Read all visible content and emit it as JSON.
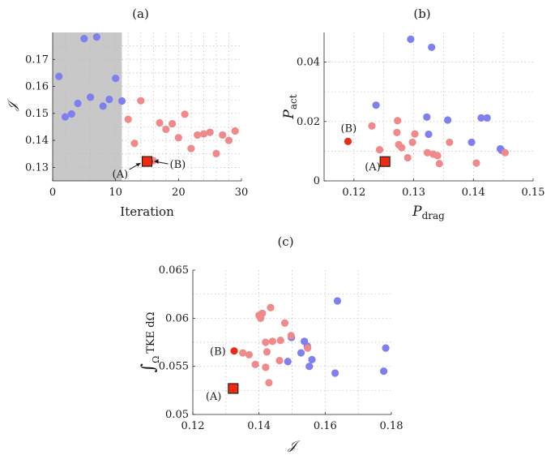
{
  "colors": {
    "blue": "#7f7ff0",
    "pink": "#f08a8a",
    "red": "#ee2a10",
    "shade": "#c8c8c8"
  },
  "chart_data": [
    {
      "id": "a",
      "type": "scatter",
      "title": "(a)",
      "xlabel": "Iteration",
      "ylabel": "𝒥",
      "xlim": [
        0,
        30
      ],
      "ylim": [
        0.125,
        0.18
      ],
      "xticks": [
        0,
        10,
        20,
        30
      ],
      "yticks": [
        0.13,
        0.14,
        0.15,
        0.16,
        0.17
      ],
      "shaded_region_x": [
        0,
        11
      ],
      "series": [
        {
          "color": "blue",
          "x": [
            1,
            2,
            3,
            4,
            5,
            6,
            7,
            8,
            9,
            10,
            11
          ],
          "y": [
            0.1637,
            0.1487,
            0.1498,
            0.1537,
            0.1777,
            0.156,
            0.1783,
            0.1527,
            0.1552,
            0.163,
            0.1546
          ]
        },
        {
          "color": "pink",
          "x": [
            12,
            13,
            14,
            15,
            16,
            17,
            18,
            19,
            20,
            21,
            22,
            23,
            24,
            25,
            26,
            27,
            28,
            29
          ],
          "y": [
            0.1478,
            0.1389,
            0.1547,
            0.1322,
            0.1325,
            0.1465,
            0.1441,
            0.1462,
            0.141,
            0.1497,
            0.137,
            0.142,
            0.1424,
            0.143,
            0.1351,
            0.142,
            0.14,
            0.1435
          ]
        }
      ],
      "highlight": {
        "label_A": "(A)",
        "label_B": "(B)",
        "x": 15,
        "y": 0.1322
      }
    },
    {
      "id": "b",
      "type": "scatter",
      "title": "(b)",
      "xlabel": "P",
      "xlabel_sub": "drag",
      "ylabel": "P",
      "ylabel_sub": "act",
      "xlim": [
        0.115,
        0.15
      ],
      "ylim": [
        0,
        0.05
      ],
      "xticks": [
        0.12,
        0.13,
        0.14,
        0.15
      ],
      "yticks": [
        0,
        0.02,
        0.04
      ],
      "series": [
        {
          "color": "blue",
          "x": [
            0.1295,
            0.133,
            0.1237,
            0.1322,
            0.1325,
            0.1357,
            0.1413,
            0.1423,
            0.1397,
            0.1445,
            0.1447
          ],
          "y": [
            0.0477,
            0.045,
            0.0255,
            0.0215,
            0.0157,
            0.0205,
            0.0212,
            0.0212,
            0.013,
            0.0108,
            0.0103
          ]
        },
        {
          "color": "pink",
          "x": [
            0.123,
            0.1273,
            0.1243,
            0.1272,
            0.1298,
            0.128,
            0.1302,
            0.1275,
            0.129,
            0.1323,
            0.1333,
            0.134,
            0.1343,
            0.136,
            0.1405,
            0.1453
          ],
          "y": [
            0.0185,
            0.0203,
            0.0105,
            0.0163,
            0.013,
            0.0112,
            0.0158,
            0.0122,
            0.0078,
            0.0095,
            0.009,
            0.0085,
            0.0058,
            0.013,
            0.006,
            0.0095
          ]
        }
      ],
      "point_A": {
        "label": "(A)",
        "x": 0.1252,
        "y": 0.0065
      },
      "point_B": {
        "label": "(B)",
        "x": 0.119,
        "y": 0.0133
      }
    },
    {
      "id": "c",
      "type": "scatter",
      "title": "(c)",
      "xlabel": "𝒥",
      "ylabel": "∫",
      "ylabel_sub": "Ω",
      "ylabel_rest": "TKE dΩ",
      "xlim": [
        0.12,
        0.18
      ],
      "ylim": [
        0.05,
        0.065
      ],
      "xticks": [
        0.12,
        0.14,
        0.16,
        0.18
      ],
      "yticks": [
        0.05,
        0.055,
        0.06,
        0.065
      ],
      "series": [
        {
          "color": "blue",
          "x": [
            0.1637,
            0.1783,
            0.1777,
            0.1537,
            0.1546,
            0.156,
            0.1552,
            0.163,
            0.1498,
            0.1487,
            0.1527
          ],
          "y": [
            0.0618,
            0.0569,
            0.0545,
            0.0576,
            0.0571,
            0.0557,
            0.055,
            0.0543,
            0.058,
            0.0555,
            0.0564
          ]
        },
        {
          "color": "pink",
          "x": [
            0.1405,
            0.141,
            0.1435,
            0.1478,
            0.14,
            0.1465,
            0.1497,
            0.142,
            0.1441,
            0.1462,
            0.1424,
            0.143,
            0.1351,
            0.137,
            0.1389,
            0.142,
            0.1547
          ],
          "y": [
            0.06,
            0.0605,
            0.0611,
            0.0595,
            0.0603,
            0.0577,
            0.0582,
            0.0575,
            0.0576,
            0.0556,
            0.0565,
            0.0533,
            0.0564,
            0.0562,
            0.0552,
            0.0549,
            0.0569
          ]
        }
      ],
      "point_A": {
        "label": "(A)",
        "x": 0.1322,
        "y": 0.0527
      },
      "point_B": {
        "label": "(B)",
        "x": 0.1325,
        "y": 0.0566
      }
    }
  ]
}
